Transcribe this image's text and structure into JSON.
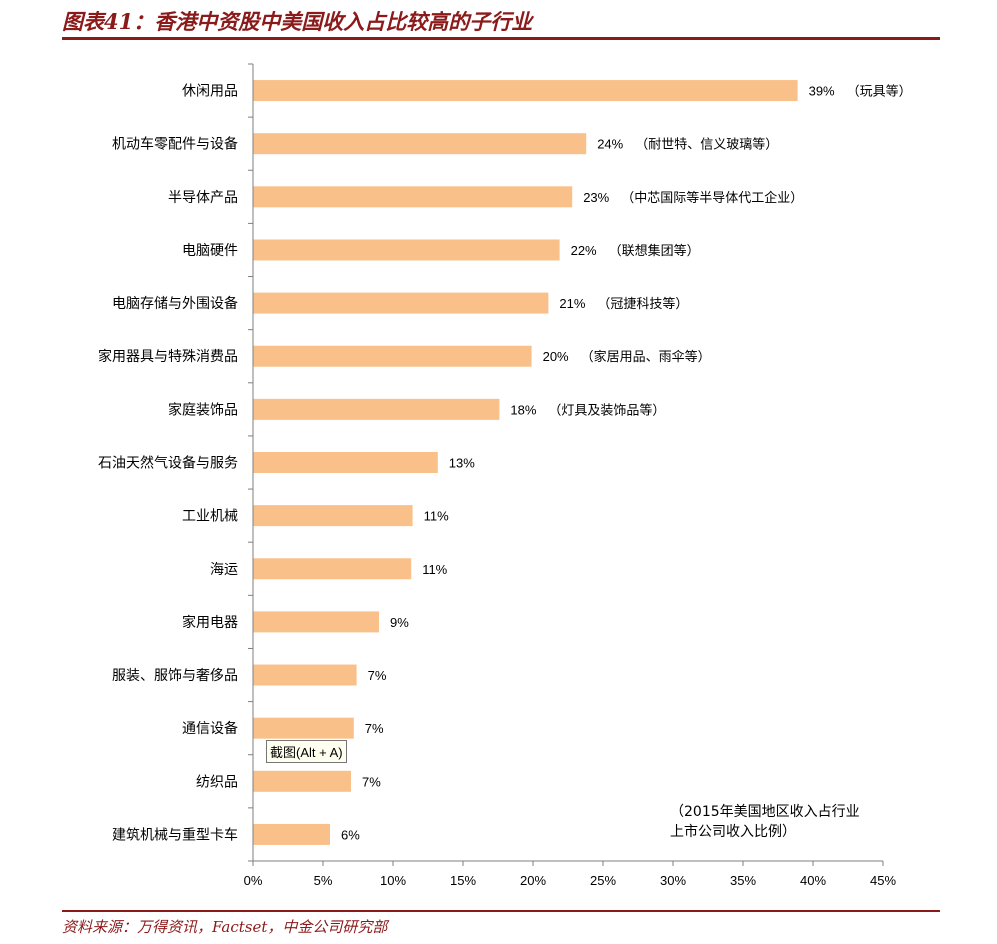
{
  "header": {
    "title": "图表41：香港中资股中美国收入占比较高的子行业"
  },
  "footer": {
    "source": "资料来源：万得资讯，Factset，中金公司研究部"
  },
  "tooltip": {
    "text": "截图(Alt + A)"
  },
  "chart_data": {
    "type": "bar",
    "orientation": "horizontal",
    "title": "",
    "xlabel": "",
    "ylabel": "",
    "xlim": [
      0,
      45
    ],
    "x_ticks": [
      "0%",
      "5%",
      "10%",
      "15%",
      "20%",
      "25%",
      "30%",
      "35%",
      "40%",
      "45%"
    ],
    "grid": false,
    "bar_color": "#f9c089",
    "annotation": [
      "（2015年美国地区收入占行业",
      "上市公司收入比例）"
    ],
    "categories": [
      "休闲用品",
      "机动车零配件与设备",
      "半导体产品",
      "电脑硬件",
      "电脑存储与外围设备",
      "家用器具与特殊消费品",
      "家庭装饰品",
      "石油天然气设备与服务",
      "工业机械",
      "海运",
      "家用电器",
      "服装、服饰与奢侈品",
      "通信设备",
      "纺织品",
      "建筑机械与重型卡车"
    ],
    "values": [
      38.9,
      23.8,
      22.8,
      21.9,
      21.1,
      19.9,
      17.6,
      13.2,
      11.4,
      11.3,
      9.0,
      7.4,
      7.2,
      7.0,
      5.5
    ],
    "value_labels": [
      "39%",
      "24%",
      "23%",
      "22%",
      "21%",
      "20%",
      "18%",
      "13%",
      "11%",
      "11%",
      "9%",
      "7%",
      "7%",
      "7%",
      "6%"
    ],
    "notes": [
      "（玩具等）",
      "（耐世特、信义玻璃等）",
      "（中芯国际等半导体代工企业）",
      "（联想集团等）",
      "（冠捷科技等）",
      "（家居用品、雨伞等）",
      "（灯具及装饰品等）",
      "",
      "",
      "",
      "",
      "",
      "",
      "",
      ""
    ]
  }
}
